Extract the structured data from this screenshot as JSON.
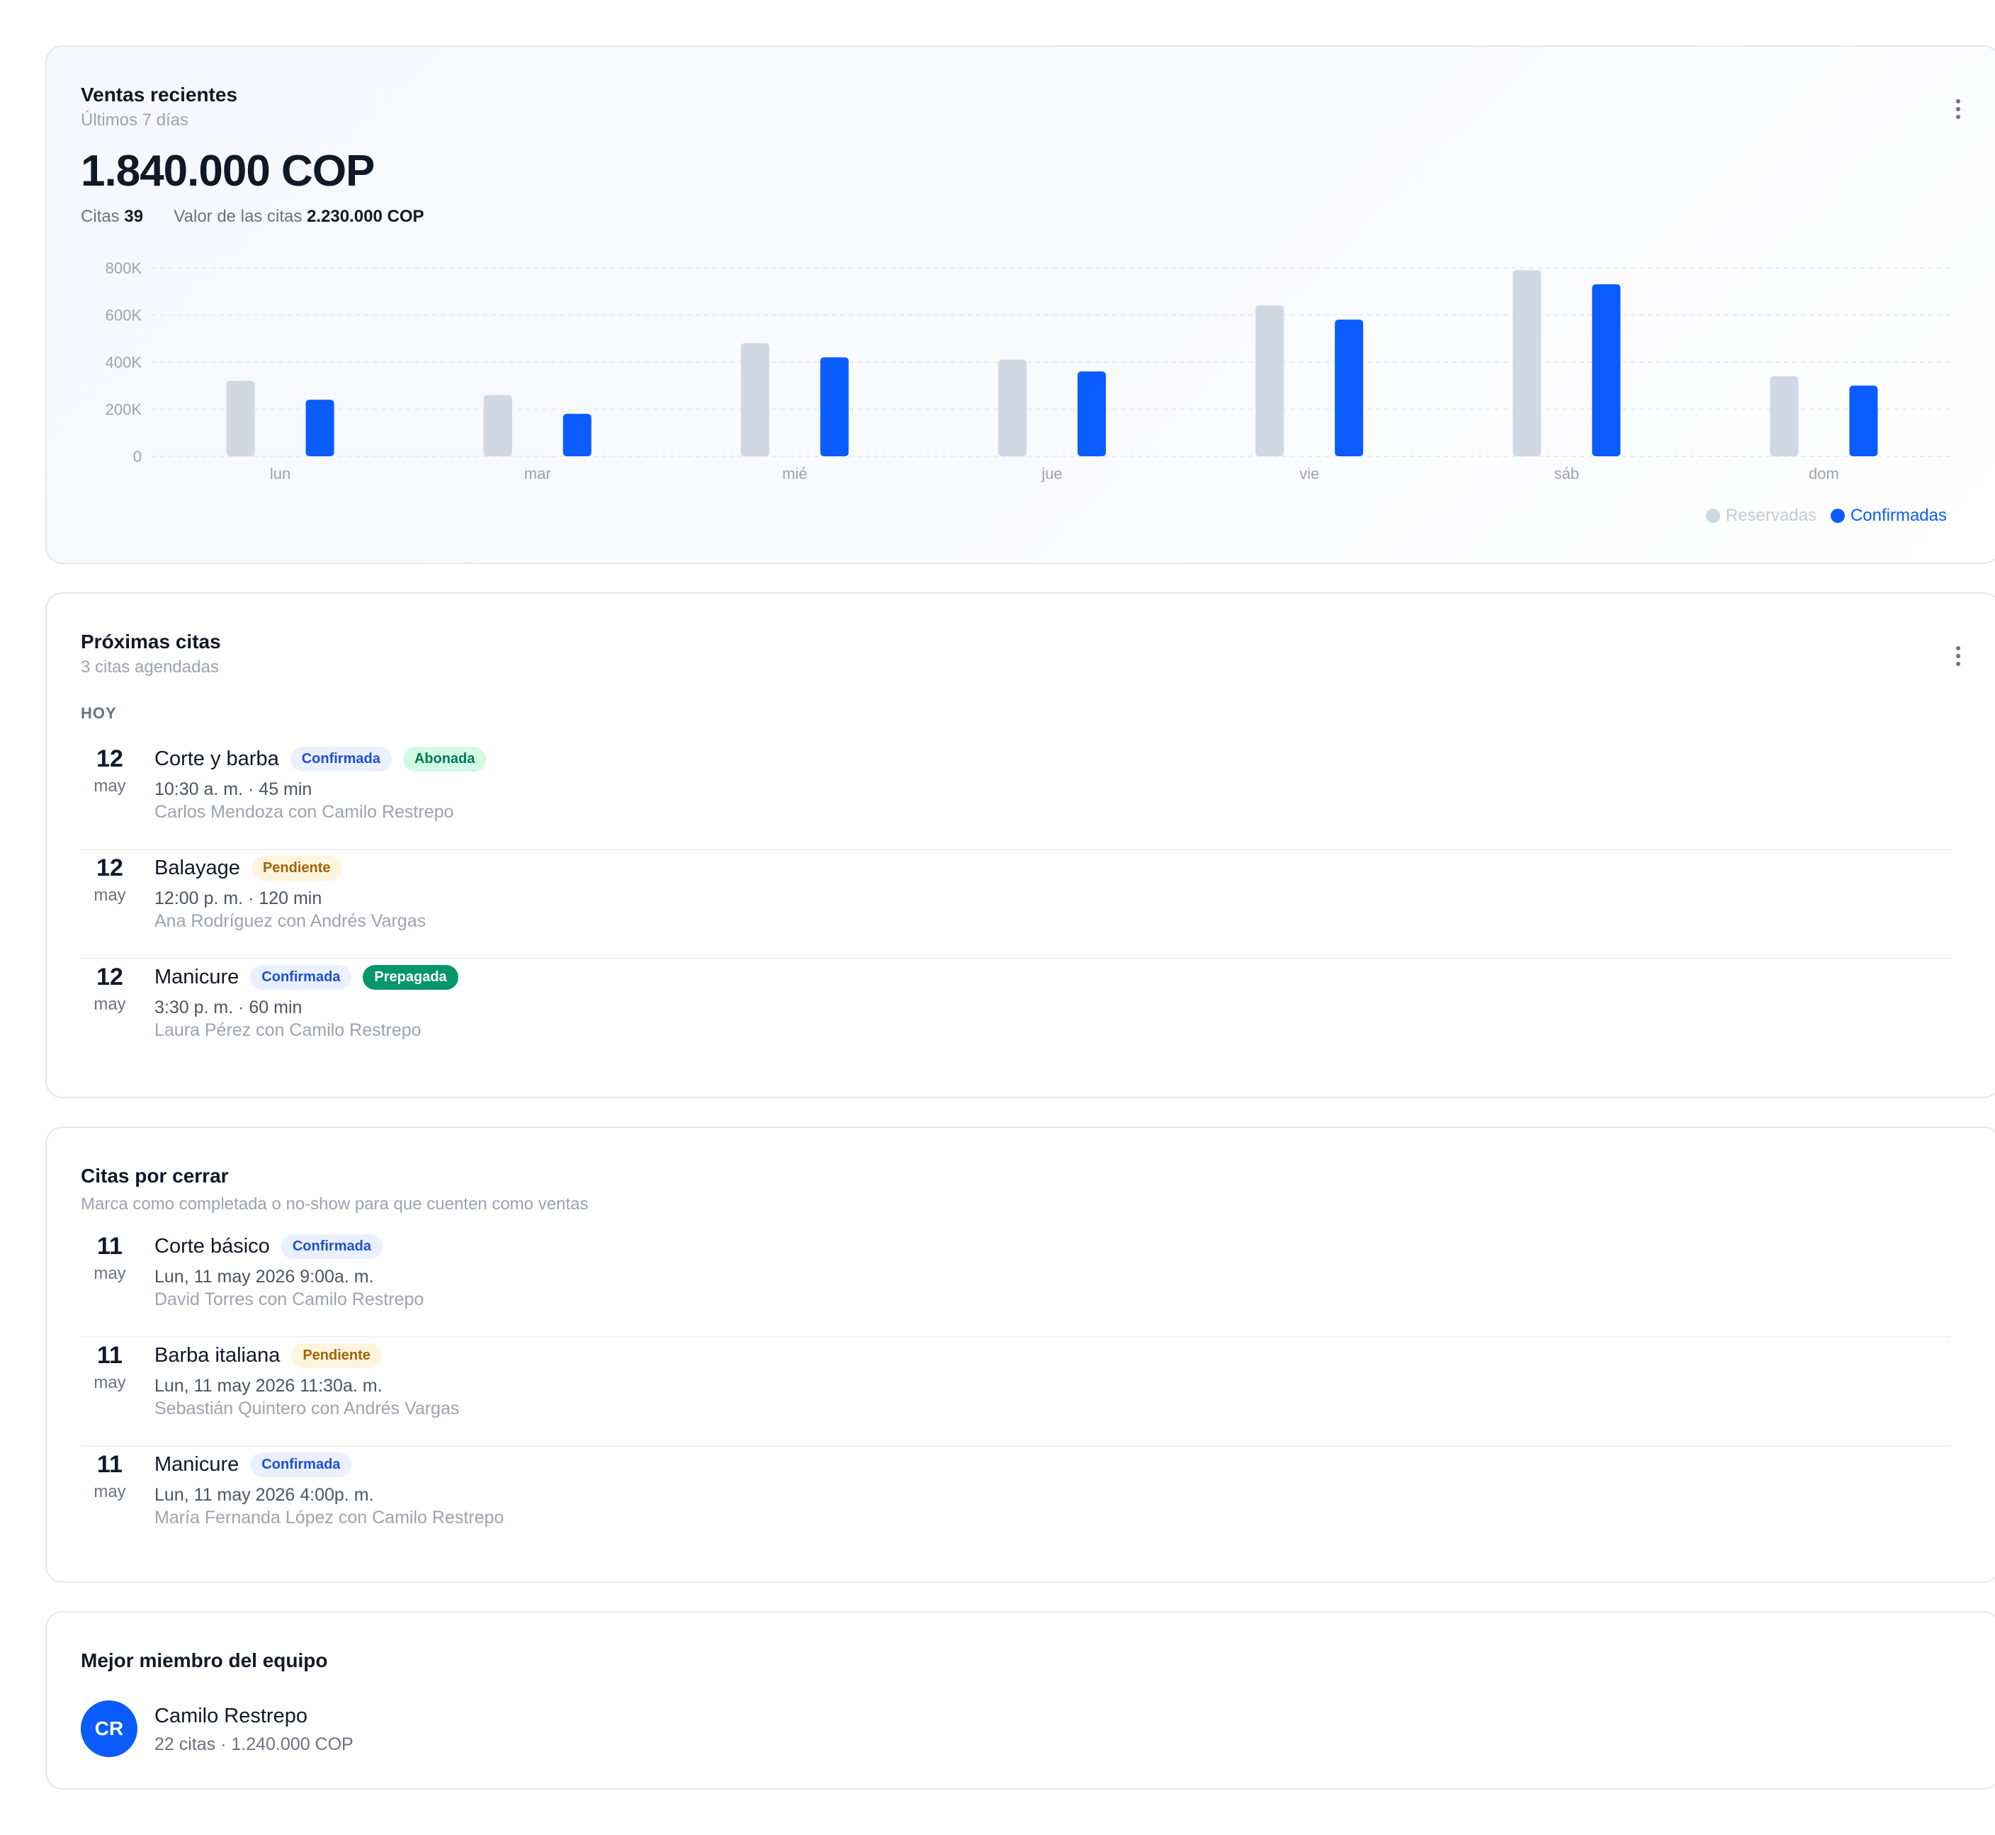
{
  "sales": {
    "title": "Ventas recientes",
    "subtitle": "Últimos 7 días",
    "total": "1.840.000 COP",
    "citas_label": "Citas",
    "citas_value": "39",
    "valor_label": "Valor de las citas",
    "valor_value": "2.230.000 COP"
  },
  "chart_data": {
    "type": "bar",
    "categories": [
      "lun",
      "mar",
      "mié",
      "jue",
      "vie",
      "sáb",
      "dom"
    ],
    "series": [
      {
        "name": "Reservadas",
        "color": "#cfd8e3",
        "values": [
          320000,
          260000,
          480000,
          410000,
          640000,
          790000,
          340000
        ]
      },
      {
        "name": "Confirmadas",
        "color": "#0a5cff",
        "values": [
          240000,
          180000,
          420000,
          360000,
          580000,
          730000,
          300000
        ]
      }
    ],
    "y_ticks": [
      0,
      200000,
      400000,
      600000,
      800000
    ],
    "y_tick_labels": [
      "0",
      "200K",
      "400K",
      "600K",
      "800K"
    ],
    "ylim": [
      0,
      800000
    ],
    "grid": true,
    "legend": "bottom-right"
  },
  "upcoming": {
    "title": "Próximas citas",
    "subtitle": "3 citas agendadas",
    "section_label": "HOY",
    "items": [
      {
        "day": "12",
        "month": "may",
        "service": "Corte y barba",
        "badges": [
          {
            "text": "Confirmada",
            "kind": "confirmada"
          },
          {
            "text": "Abonada",
            "kind": "abonada"
          }
        ],
        "time": "10:30 a. m. · 45 min",
        "people": "Carlos Mendoza con Camilo Restrepo"
      },
      {
        "day": "12",
        "month": "may",
        "service": "Balayage",
        "badges": [
          {
            "text": "Pendiente",
            "kind": "pendiente"
          }
        ],
        "time": "12:00 p. m. · 120 min",
        "people": "Ana Rodríguez con Andrés Vargas"
      },
      {
        "day": "12",
        "month": "may",
        "service": "Manicure",
        "badges": [
          {
            "text": "Confirmada",
            "kind": "confirmada"
          },
          {
            "text": "Prepagada",
            "kind": "prepagada"
          }
        ],
        "time": "3:30 p. m. · 60 min",
        "people": "Laura Pérez con Camilo Restrepo"
      }
    ]
  },
  "to_close": {
    "title": "Citas por cerrar",
    "subtitle": "Marca como completada o no-show para que cuenten como ventas",
    "items": [
      {
        "day": "11",
        "month": "may",
        "service": "Corte básico",
        "badges": [
          {
            "text": "Confirmada",
            "kind": "confirmada"
          }
        ],
        "time": "Lun, 11 may 2026 9:00a. m.",
        "people": "David Torres con Camilo Restrepo"
      },
      {
        "day": "11",
        "month": "may",
        "service": "Barba italiana",
        "badges": [
          {
            "text": "Pendiente",
            "kind": "pendiente"
          }
        ],
        "time": "Lun, 11 may 2026 11:30a. m.",
        "people": "Sebastián Quintero con Andrés Vargas"
      },
      {
        "day": "11",
        "month": "may",
        "service": "Manicure",
        "badges": [
          {
            "text": "Confirmada",
            "kind": "confirmada"
          }
        ],
        "time": "Lun, 11 may 2026 4:00p. m.",
        "people": "María Fernanda López con Camilo Restrepo"
      }
    ]
  },
  "best_member": {
    "title": "Mejor miembro del equipo",
    "initials": "CR",
    "name": "Camilo Restrepo",
    "stats": "22 citas · 1.240.000 COP"
  },
  "icons": {
    "more": "more-vertical-icon"
  }
}
